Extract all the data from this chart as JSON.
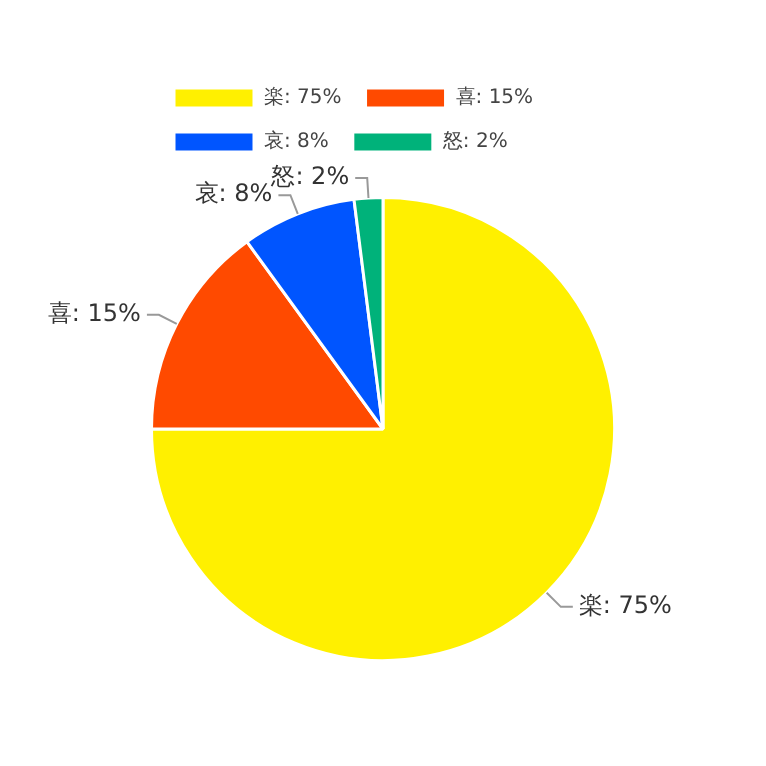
{
  "chart_data": {
    "type": "pie",
    "categories": [
      "楽: 75%",
      "喜: 15%",
      "哀: 8%",
      "怒: 2%"
    ],
    "values": [
      75,
      15,
      8,
      2
    ],
    "colors": [
      "#fff000",
      "#ff4a00",
      "#0055ff",
      "#00b27a"
    ],
    "legend": "top left"
  }
}
